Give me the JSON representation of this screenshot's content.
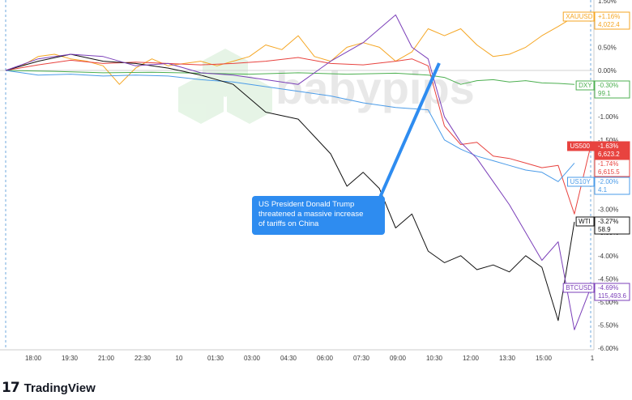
{
  "footer": {
    "brand_mark": "17",
    "brand_name": "TradingView"
  },
  "watermark": {
    "text": "babypips"
  },
  "annotation": {
    "lines": [
      "US President Donald Trump",
      "threatened a massive increase",
      "of tariffs on China"
    ]
  },
  "colors": {
    "XAUUSD": "#f5a623",
    "DXY": "#4caf50",
    "US500": "#e8433f",
    "US10Y": "#4a9be8",
    "WTI": "#111111",
    "BTCUSD": "#7b3fb9",
    "axis_text": "#3a3a3a",
    "zero_line": "#d0d0d0",
    "callout": "#2e8cf0"
  },
  "chart_data": {
    "type": "line",
    "ylabel": "",
    "ylim": [
      -6.0,
      1.5
    ],
    "grid": false,
    "x_ticks": [
      "18:00",
      "19:30",
      "21:00",
      "22:30",
      "10",
      "01:30",
      "03:00",
      "04:30",
      "06:00",
      "07:30",
      "09:00",
      "10:30",
      "12:00",
      "13:30",
      "15:00",
      "1"
    ],
    "y_ticks": [
      "1.50%",
      "1.00%",
      "0.50%",
      "0.00%",
      "-0.50%",
      "-1.00%",
      "-1.50%",
      "-2.00%",
      "-2.50%",
      "-3.00%",
      "-3.50%",
      "-4.00%",
      "-4.50%",
      "-5.00%",
      "-5.50%",
      "-6.00%"
    ],
    "series": [
      {
        "name": "XAUUSD",
        "last_change": "+1.16%",
        "last_price": "4,022.4",
        "values": [
          [
            0,
            0.0
          ],
          [
            1,
            0.1
          ],
          [
            2,
            0.3
          ],
          [
            3,
            0.35
          ],
          [
            4,
            0.25
          ],
          [
            5,
            0.2
          ],
          [
            6,
            0.1
          ],
          [
            7,
            -0.3
          ],
          [
            8,
            0.05
          ],
          [
            9,
            0.25
          ],
          [
            10,
            0.1
          ],
          [
            11,
            0.15
          ],
          [
            12,
            0.2
          ],
          [
            13,
            0.1
          ],
          [
            14,
            0.2
          ],
          [
            15,
            0.3
          ],
          [
            16,
            0.55
          ],
          [
            17,
            0.45
          ],
          [
            18,
            0.75
          ],
          [
            19,
            0.3
          ],
          [
            20,
            0.2
          ],
          [
            21,
            0.5
          ],
          [
            22,
            0.6
          ],
          [
            23,
            0.5
          ],
          [
            24,
            0.2
          ],
          [
            25,
            0.4
          ],
          [
            26,
            0.9
          ],
          [
            27,
            0.75
          ],
          [
            28,
            0.9
          ],
          [
            29,
            0.55
          ],
          [
            30,
            0.3
          ],
          [
            31,
            0.35
          ],
          [
            32,
            0.5
          ],
          [
            33,
            0.75
          ],
          [
            34,
            0.95
          ],
          [
            35,
            1.16
          ]
        ]
      },
      {
        "name": "DXY",
        "last_change": "-0.30%",
        "last_price": "99.1",
        "values": [
          [
            0,
            0.0
          ],
          [
            3,
            -0.02
          ],
          [
            6,
            -0.05
          ],
          [
            9,
            -0.04
          ],
          [
            12,
            -0.06
          ],
          [
            15,
            -0.08
          ],
          [
            18,
            -0.05
          ],
          [
            21,
            -0.08
          ],
          [
            24,
            -0.06
          ],
          [
            26,
            -0.1
          ],
          [
            27,
            -0.15
          ],
          [
            28,
            -0.3
          ],
          [
            29,
            -0.22
          ],
          [
            30,
            -0.2
          ],
          [
            31,
            -0.25
          ],
          [
            32,
            -0.22
          ],
          [
            33,
            -0.27
          ],
          [
            34,
            -0.28
          ],
          [
            35,
            -0.3
          ]
        ]
      },
      {
        "name": "US500",
        "last_change": "-1.63%",
        "last_price": "6,623.2",
        "values": [
          [
            0,
            0.0
          ],
          [
            2,
            0.12
          ],
          [
            4,
            0.22
          ],
          [
            6,
            0.15
          ],
          [
            8,
            0.18
          ],
          [
            10,
            0.15
          ],
          [
            12,
            0.12
          ],
          [
            14,
            0.15
          ],
          [
            16,
            0.2
          ],
          [
            18,
            0.28
          ],
          [
            20,
            0.15
          ],
          [
            22,
            0.12
          ],
          [
            24,
            0.2
          ],
          [
            25,
            0.25
          ],
          [
            26,
            0.1
          ],
          [
            27,
            -1.2
          ],
          [
            28,
            -1.6
          ],
          [
            29,
            -1.55
          ],
          [
            30,
            -1.85
          ],
          [
            31,
            -1.9
          ],
          [
            32,
            -2.0
          ],
          [
            33,
            -2.1
          ],
          [
            34,
            -2.05
          ],
          [
            35,
            -3.1
          ],
          [
            36,
            -1.63
          ]
        ]
      },
      {
        "name": "",
        "last_change": "-1.74%",
        "last_price": "6,615.5",
        "values": []
      },
      {
        "name": "US10Y",
        "last_change": "-2.00%",
        "last_price": "4.1",
        "values": [
          [
            0,
            0.0
          ],
          [
            2,
            -0.1
          ],
          [
            4,
            -0.08
          ],
          [
            6,
            -0.12
          ],
          [
            8,
            -0.1
          ],
          [
            10,
            -0.12
          ],
          [
            12,
            -0.2
          ],
          [
            14,
            -0.25
          ],
          [
            16,
            -0.35
          ],
          [
            18,
            -0.45
          ],
          [
            20,
            -0.55
          ],
          [
            22,
            -0.7
          ],
          [
            24,
            -0.8
          ],
          [
            26,
            -0.85
          ],
          [
            27,
            -1.5
          ],
          [
            28,
            -1.7
          ],
          [
            29,
            -1.85
          ],
          [
            30,
            -1.95
          ],
          [
            31,
            -2.05
          ],
          [
            32,
            -2.15
          ],
          [
            33,
            -2.2
          ],
          [
            34,
            -2.4
          ],
          [
            35,
            -2.0
          ]
        ]
      },
      {
        "name": "WTI",
        "last_change": "-3.27%",
        "last_price": "58.9",
        "values": [
          [
            0,
            0.0
          ],
          [
            2,
            0.2
          ],
          [
            4,
            0.35
          ],
          [
            6,
            0.2
          ],
          [
            8,
            0.15
          ],
          [
            10,
            0.05
          ],
          [
            12,
            -0.1
          ],
          [
            14,
            -0.3
          ],
          [
            16,
            -0.9
          ],
          [
            18,
            -1.05
          ],
          [
            20,
            -1.8
          ],
          [
            21,
            -2.5
          ],
          [
            22,
            -2.2
          ],
          [
            23,
            -2.55
          ],
          [
            24,
            -3.4
          ],
          [
            25,
            -3.1
          ],
          [
            26,
            -3.9
          ],
          [
            27,
            -4.15
          ],
          [
            28,
            -4.0
          ],
          [
            29,
            -4.3
          ],
          [
            30,
            -4.2
          ],
          [
            31,
            -4.35
          ],
          [
            32,
            -4.0
          ],
          [
            33,
            -4.25
          ],
          [
            34,
            -5.4
          ],
          [
            35,
            -3.27
          ]
        ]
      },
      {
        "name": "BTCUSD",
        "last_change": "-4.69%",
        "last_price": "115,493.6",
        "values": [
          [
            0,
            0.0
          ],
          [
            2,
            0.25
          ],
          [
            4,
            0.35
          ],
          [
            6,
            0.3
          ],
          [
            8,
            0.1
          ],
          [
            10,
            0.15
          ],
          [
            12,
            -0.05
          ],
          [
            14,
            -0.1
          ],
          [
            16,
            -0.2
          ],
          [
            18,
            -0.3
          ],
          [
            20,
            0.2
          ],
          [
            21,
            0.4
          ],
          [
            22,
            0.6
          ],
          [
            23,
            0.9
          ],
          [
            24,
            1.2
          ],
          [
            25,
            0.5
          ],
          [
            26,
            0.25
          ],
          [
            27,
            -1.0
          ],
          [
            28,
            -1.55
          ],
          [
            29,
            -1.9
          ],
          [
            30,
            -2.4
          ],
          [
            31,
            -2.9
          ],
          [
            32,
            -3.5
          ],
          [
            33,
            -4.1
          ],
          [
            34,
            -3.7
          ],
          [
            35,
            -5.6
          ],
          [
            36,
            -4.69
          ]
        ]
      }
    ]
  }
}
